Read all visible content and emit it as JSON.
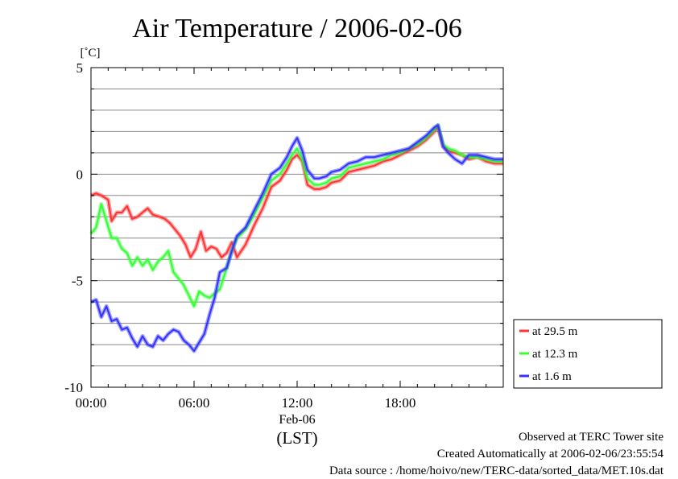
{
  "chart_data": {
    "type": "line",
    "title": "Air Temperature / 2006-02-06",
    "ylabel": "[˚C]",
    "xlabel": "Feb-06",
    "xlabel_unit": "(LST)",
    "ylim": [
      -10,
      5
    ],
    "yticks": [
      5,
      0,
      -5,
      -10
    ],
    "xlim_hours": [
      0,
      24
    ],
    "xticks": [
      {
        "hour": 0,
        "label": "00:00"
      },
      {
        "hour": 6,
        "label": "06:00"
      },
      {
        "hour": 12,
        "label": "12:00"
      },
      {
        "hour": 18,
        "label": "18:00"
      }
    ],
    "grid": true,
    "legend_position": "right-bottom",
    "series": [
      {
        "name": "at 29.5 m",
        "color": "#ff3333",
        "x": [
          0,
          0.3,
          0.6,
          1.0,
          1.2,
          1.5,
          1.8,
          2.1,
          2.4,
          2.7,
          3.0,
          3.3,
          3.6,
          4.0,
          4.3,
          4.6,
          4.9,
          5.2,
          5.5,
          5.8,
          6.1,
          6.4,
          6.7,
          7.0,
          7.3,
          7.6,
          7.9,
          8.2,
          8.5,
          9.0,
          9.5,
          10.0,
          10.5,
          11.0,
          11.4,
          11.7,
          12.0,
          12.3,
          12.6,
          13.0,
          13.3,
          13.7,
          14.0,
          14.5,
          15.0,
          15.5,
          16.0,
          16.5,
          17.0,
          17.5,
          18.0,
          18.5,
          19.0,
          19.5,
          20.0,
          20.2,
          20.5,
          20.8,
          21.2,
          21.6,
          22.0,
          22.5,
          23.0,
          23.5,
          24.0
        ],
        "values": [
          -1.0,
          -0.9,
          -1.0,
          -1.2,
          -2.2,
          -1.8,
          -1.8,
          -1.5,
          -2.1,
          -2.0,
          -1.8,
          -1.6,
          -1.9,
          -2.0,
          -2.1,
          -2.3,
          -2.6,
          -2.9,
          -3.3,
          -3.9,
          -3.5,
          -2.7,
          -3.6,
          -3.4,
          -3.5,
          -3.9,
          -3.7,
          -3.2,
          -3.9,
          -3.3,
          -2.4,
          -1.6,
          -0.6,
          -0.3,
          0.2,
          0.7,
          0.9,
          0.6,
          -0.5,
          -0.7,
          -0.7,
          -0.6,
          -0.4,
          -0.3,
          0.1,
          0.2,
          0.3,
          0.4,
          0.6,
          0.7,
          0.9,
          1.1,
          1.3,
          1.6,
          2.0,
          2.2,
          1.3,
          1.1,
          1.0,
          0.9,
          0.7,
          0.8,
          0.6,
          0.5,
          0.5
        ]
      },
      {
        "name": "at 12.3 m",
        "color": "#33ff33",
        "x": [
          0,
          0.3,
          0.6,
          0.9,
          1.2,
          1.5,
          1.8,
          2.1,
          2.4,
          2.7,
          3.0,
          3.3,
          3.6,
          3.9,
          4.2,
          4.5,
          4.8,
          5.1,
          5.4,
          5.7,
          6.0,
          6.3,
          6.6,
          6.9,
          7.2,
          7.5,
          7.9,
          8.2,
          8.5,
          9.0,
          9.5,
          10.0,
          10.5,
          11.0,
          11.4,
          11.7,
          12.0,
          12.3,
          12.6,
          13.0,
          13.3,
          13.7,
          14.0,
          14.5,
          15.0,
          15.5,
          16.0,
          16.5,
          17.0,
          17.5,
          18.0,
          18.5,
          19.0,
          19.5,
          20.0,
          20.2,
          20.5,
          20.8,
          21.2,
          21.6,
          22.0,
          22.5,
          23.0,
          23.5,
          24.0
        ],
        "values": [
          -2.8,
          -2.5,
          -1.4,
          -2.2,
          -3.0,
          -3.0,
          -3.5,
          -3.7,
          -4.3,
          -3.9,
          -4.3,
          -4.0,
          -4.5,
          -4.1,
          -3.9,
          -3.6,
          -4.6,
          -4.9,
          -5.2,
          -5.7,
          -6.2,
          -5.5,
          -5.7,
          -5.8,
          -5.6,
          -5.4,
          -4.4,
          -3.6,
          -3.0,
          -2.6,
          -1.9,
          -1.1,
          -0.3,
          0.0,
          0.5,
          0.9,
          1.2,
          0.7,
          -0.2,
          -0.5,
          -0.5,
          -0.4,
          -0.2,
          -0.1,
          0.3,
          0.4,
          0.5,
          0.6,
          0.7,
          0.9,
          1.0,
          1.2,
          1.4,
          1.7,
          2.1,
          2.3,
          1.4,
          1.2,
          1.1,
          0.9,
          0.8,
          0.8,
          0.7,
          0.6,
          0.6
        ]
      },
      {
        "name": "at 1.6 m",
        "color": "#3333ff",
        "x": [
          0,
          0.3,
          0.6,
          0.9,
          1.2,
          1.5,
          1.8,
          2.1,
          2.4,
          2.7,
          3.0,
          3.3,
          3.6,
          3.9,
          4.2,
          4.5,
          4.8,
          5.1,
          5.4,
          5.7,
          6.0,
          6.3,
          6.6,
          6.9,
          7.2,
          7.5,
          7.9,
          8.2,
          8.5,
          9.0,
          9.5,
          10.0,
          10.5,
          11.0,
          11.4,
          11.7,
          12.0,
          12.3,
          12.6,
          13.0,
          13.3,
          13.7,
          14.0,
          14.5,
          15.0,
          15.5,
          16.0,
          16.5,
          17.0,
          17.5,
          18.0,
          18.5,
          19.0,
          19.5,
          20.0,
          20.2,
          20.5,
          20.8,
          21.2,
          21.6,
          22.0,
          22.5,
          23.0,
          23.5,
          24.0
        ],
        "values": [
          -6.0,
          -5.9,
          -6.7,
          -6.2,
          -6.9,
          -6.8,
          -7.3,
          -7.2,
          -7.7,
          -8.1,
          -7.6,
          -8.0,
          -8.1,
          -7.6,
          -7.8,
          -7.5,
          -7.3,
          -7.4,
          -7.8,
          -8.0,
          -8.3,
          -7.9,
          -7.5,
          -6.6,
          -5.8,
          -4.6,
          -4.4,
          -3.6,
          -2.9,
          -2.5,
          -1.7,
          -0.9,
          0.0,
          0.3,
          0.8,
          1.3,
          1.7,
          1.1,
          0.2,
          -0.2,
          -0.2,
          -0.1,
          0.1,
          0.2,
          0.5,
          0.6,
          0.8,
          0.8,
          0.9,
          1.0,
          1.1,
          1.2,
          1.5,
          1.8,
          2.2,
          2.3,
          1.3,
          1.0,
          0.7,
          0.5,
          0.9,
          0.9,
          0.8,
          0.7,
          0.7
        ]
      }
    ]
  },
  "footer": {
    "site": "Observed at TERC Tower site",
    "created": "Created Automatically at 2006-02-06/23:55:54",
    "source": "Data source : /home/hoivo/new/TERC-data/sorted_data/MET.10s.dat"
  }
}
